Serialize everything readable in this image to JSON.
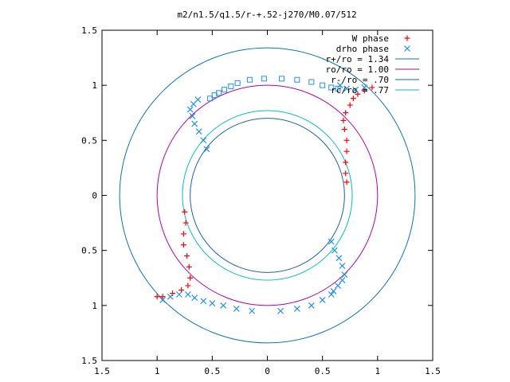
{
  "chart_data": {
    "type": "scatter",
    "title": "m2/n1.5/q1.5/r-+.52-j270/M0.07/512",
    "xlabel": "",
    "ylabel": "",
    "xlim": [
      -1.5,
      1.5
    ],
    "ylim": [
      -1.5,
      1.5
    ],
    "x_ticks": [
      "1.5",
      "1",
      "0.5",
      "0",
      "0.5",
      "1",
      "1.5"
    ],
    "y_ticks": [
      "1.5",
      "1",
      "0.5",
      "0",
      "0.5",
      "1",
      "1.5"
    ],
    "grid": false,
    "legend_position": "top-right",
    "circles": [
      {
        "label": "r+/ro = 1.34",
        "radius": 1.34,
        "color": "#0a75b5"
      },
      {
        "label": "ro/ro = 1.00",
        "radius": 1.0,
        "color": "#b000b0"
      },
      {
        "label": "r-/ro = .70",
        "radius": 0.7,
        "color": "#1f5fb0"
      },
      {
        "label": "rc/ro = .77",
        "radius": 0.77,
        "color": "#00c0c0"
      }
    ],
    "series": [
      {
        "name": "W phase",
        "marker": "+",
        "color": "#ff0000",
        "points": [
          [
            0.95,
            0.98
          ],
          [
            0.88,
            0.95
          ],
          [
            0.82,
            0.92
          ],
          [
            0.78,
            0.88
          ],
          [
            0.75,
            0.82
          ],
          [
            0.71,
            0.75
          ],
          [
            0.69,
            0.68
          ],
          [
            0.7,
            0.6
          ],
          [
            0.72,
            0.5
          ],
          [
            0.72,
            0.4
          ],
          [
            0.71,
            0.3
          ],
          [
            0.71,
            0.2
          ],
          [
            0.72,
            0.12
          ],
          [
            -0.75,
            -0.15
          ],
          [
            -0.74,
            -0.25
          ],
          [
            -0.76,
            -0.35
          ],
          [
            -0.76,
            -0.45
          ],
          [
            -0.73,
            -0.55
          ],
          [
            -0.71,
            -0.65
          ],
          [
            -0.7,
            -0.75
          ],
          [
            -0.72,
            -0.82
          ],
          [
            -0.78,
            -0.86
          ],
          [
            -0.86,
            -0.89
          ],
          [
            -0.95,
            -0.92
          ],
          [
            -1.0,
            -0.92
          ]
        ]
      },
      {
        "name": "drho phase",
        "marker": "x",
        "color": "#1e90ff",
        "points": [
          [
            0.88,
            0.98
          ],
          [
            0.8,
            0.96
          ],
          [
            0.72,
            0.97
          ],
          [
            0.66,
            1.0
          ],
          [
            -0.55,
            0.42
          ],
          [
            -0.58,
            0.5
          ],
          [
            -0.62,
            0.58
          ],
          [
            -0.66,
            0.65
          ],
          [
            -0.68,
            0.72
          ],
          [
            -0.7,
            0.78
          ],
          [
            -0.67,
            0.83
          ],
          [
            -0.63,
            0.87
          ],
          [
            0.58,
            -0.42
          ],
          [
            0.61,
            -0.5
          ],
          [
            0.65,
            -0.57
          ],
          [
            0.68,
            -0.64
          ],
          [
            0.7,
            -0.72
          ],
          [
            0.68,
            -0.77
          ],
          [
            0.64,
            -0.82
          ],
          [
            0.6,
            -0.87
          ],
          [
            -0.95,
            -0.95
          ],
          [
            -0.88,
            -0.92
          ],
          [
            -0.8,
            -0.9
          ],
          [
            -0.72,
            -0.9
          ],
          [
            -0.66,
            -0.93
          ],
          [
            -0.58,
            -0.96
          ],
          [
            -0.5,
            -0.98
          ],
          [
            -0.4,
            -1.0
          ],
          [
            -0.28,
            -1.03
          ],
          [
            -0.14,
            -1.05
          ],
          [
            0.12,
            -1.05
          ],
          [
            0.27,
            -1.03
          ],
          [
            0.4,
            -1.0
          ],
          [
            0.5,
            -0.95
          ],
          [
            0.58,
            -0.9
          ]
        ]
      },
      {
        "name": "",
        "marker": "square",
        "color": "#1e90ff",
        "points": [
          [
            -0.52,
            0.88
          ],
          [
            -0.48,
            0.91
          ],
          [
            -0.44,
            0.93
          ],
          [
            -0.39,
            0.96
          ],
          [
            -0.33,
            0.99
          ],
          [
            -0.27,
            1.02
          ],
          [
            -0.16,
            1.05
          ],
          [
            -0.03,
            1.06
          ],
          [
            0.13,
            1.06
          ],
          [
            0.27,
            1.05
          ],
          [
            0.4,
            1.03
          ],
          [
            0.5,
            1.0
          ],
          [
            0.58,
            0.98
          ],
          [
            0.64,
            0.97
          ]
        ]
      }
    ]
  }
}
